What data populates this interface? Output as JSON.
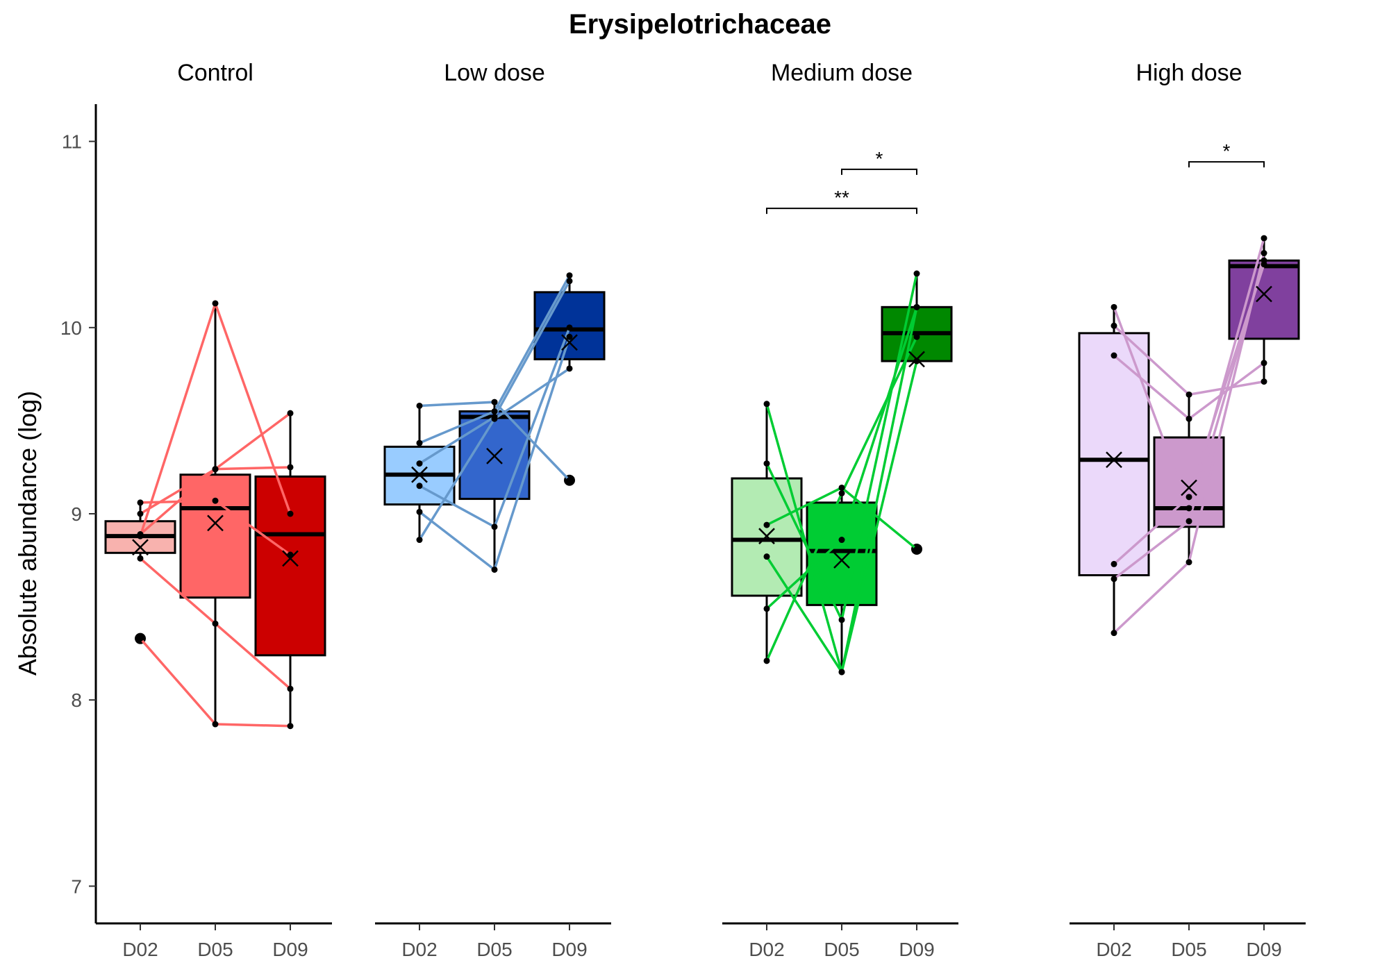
{
  "chart_data": {
    "type": "box",
    "title": "Erysipelotrichaceae",
    "ylabel": "Absolute abundance (log)",
    "xlabel": "",
    "ylim": [
      6.8,
      11.2
    ],
    "yticks": [
      "7",
      "8",
      "9",
      "10",
      "11"
    ],
    "categories": [
      "D02",
      "D05",
      "D09"
    ],
    "grid": false,
    "legend": "none",
    "panels": [
      {
        "name": "Control",
        "colors": [
          "#F8B2AE",
          "#FF6666",
          "#CC0000"
        ],
        "line_color": "#FF6666",
        "boxes": [
          {
            "q1": 8.79,
            "median": 8.88,
            "q3": 8.96,
            "wlow": 8.76,
            "whigh": 9.06,
            "mean": 8.82,
            "outliers": [
              8.33
            ]
          },
          {
            "q1": 8.55,
            "median": 9.03,
            "q3": 9.21,
            "wlow": 7.87,
            "whigh": 10.13,
            "mean": 8.95,
            "outliers": []
          },
          {
            "q1": 8.24,
            "median": 8.89,
            "q3": 9.2,
            "wlow": 7.86,
            "whigh": 9.54,
            "mean": 8.76,
            "outliers": []
          }
        ],
        "subjects": [
          [
            8.33,
            7.87,
            7.86
          ],
          [
            8.76,
            8.41,
            8.06
          ],
          [
            8.88,
            10.13,
            9.0
          ],
          [
            8.89,
            9.24,
            9.54
          ],
          [
            9.06,
            9.07,
            8.78
          ],
          [
            9.0,
            9.24,
            9.25
          ]
        ],
        "significance": []
      },
      {
        "name": "Low dose",
        "colors": [
          "#99CCFF",
          "#3366CC",
          "#003399"
        ],
        "line_color": "#6699CC",
        "boxes": [
          {
            "q1": 9.05,
            "median": 9.21,
            "q3": 9.36,
            "wlow": 8.86,
            "whigh": 9.58,
            "mean": 9.21,
            "outliers": []
          },
          {
            "q1": 9.08,
            "median": 9.52,
            "q3": 9.55,
            "wlow": 8.7,
            "whigh": 9.6,
            "mean": 9.31,
            "outliers": []
          },
          {
            "q1": 9.83,
            "median": 9.99,
            "q3": 10.19,
            "wlow": 9.78,
            "whigh": 10.28,
            "mean": 9.92,
            "outliers": [
              9.18
            ]
          }
        ],
        "subjects": [
          [
            9.58,
            9.6,
            9.18
          ],
          [
            9.38,
            9.55,
            10.28
          ],
          [
            9.27,
            9.52,
            10.25
          ],
          [
            9.15,
            8.93,
            10.0
          ],
          [
            9.01,
            8.7,
            9.95
          ],
          [
            8.86,
            9.51,
            9.78
          ]
        ],
        "significance": []
      },
      {
        "name": "Medium dose",
        "colors": [
          "#B3EBB3",
          "#00CC33",
          "#008800"
        ],
        "line_color": "#00CC33",
        "boxes": [
          {
            "q1": 8.56,
            "median": 8.86,
            "q3": 9.19,
            "wlow": 8.21,
            "whigh": 9.59,
            "mean": 8.88,
            "outliers": []
          },
          {
            "q1": 8.51,
            "median": 8.8,
            "q3": 9.06,
            "wlow": 8.15,
            "whigh": 9.14,
            "mean": 8.75,
            "outliers": []
          },
          {
            "q1": 9.82,
            "median": 9.97,
            "q3": 10.11,
            "wlow": 9.82,
            "whigh": 10.29,
            "mean": 9.83,
            "outliers": [
              8.81
            ]
          }
        ],
        "subjects": [
          [
            9.59,
            8.15,
            10.11
          ],
          [
            9.27,
            8.43,
            10.29
          ],
          [
            8.94,
            9.14,
            8.81
          ],
          [
            8.77,
            8.15,
            9.82
          ],
          [
            8.49,
            8.86,
            10.11
          ],
          [
            8.21,
            9.11,
            9.95
          ]
        ],
        "significance": [
          {
            "from": "D02",
            "to": "D09",
            "label": "**",
            "y": 10.64
          },
          {
            "from": "D05",
            "to": "D09",
            "label": "*",
            "y": 10.85
          }
        ]
      },
      {
        "name": "High dose",
        "colors": [
          "#EBD9FA",
          "#CC99CC",
          "#80409E"
        ],
        "line_color": "#CC99CC",
        "boxes": [
          {
            "q1": 8.67,
            "median": 9.29,
            "q3": 9.97,
            "wlow": 8.36,
            "whigh": 10.11,
            "mean": 9.29,
            "outliers": []
          },
          {
            "q1": 8.93,
            "median": 9.03,
            "q3": 9.41,
            "wlow": 8.74,
            "whigh": 9.64,
            "mean": 9.14,
            "outliers": []
          },
          {
            "q1": 9.94,
            "median": 10.33,
            "q3": 10.36,
            "wlow": 9.71,
            "whigh": 10.48,
            "mean": 10.18,
            "outliers": []
          }
        ],
        "subjects": [
          [
            10.11,
            9.03,
            10.48
          ],
          [
            10.01,
            9.64,
            9.71
          ],
          [
            9.85,
            9.51,
            9.81
          ],
          [
            8.73,
            9.09,
            10.34
          ],
          [
            8.65,
            8.96,
            10.36
          ],
          [
            8.36,
            8.74,
            10.4
          ]
        ],
        "significance": [
          {
            "from": "D05",
            "to": "D09",
            "label": "*",
            "y": 10.89
          }
        ]
      }
    ]
  }
}
